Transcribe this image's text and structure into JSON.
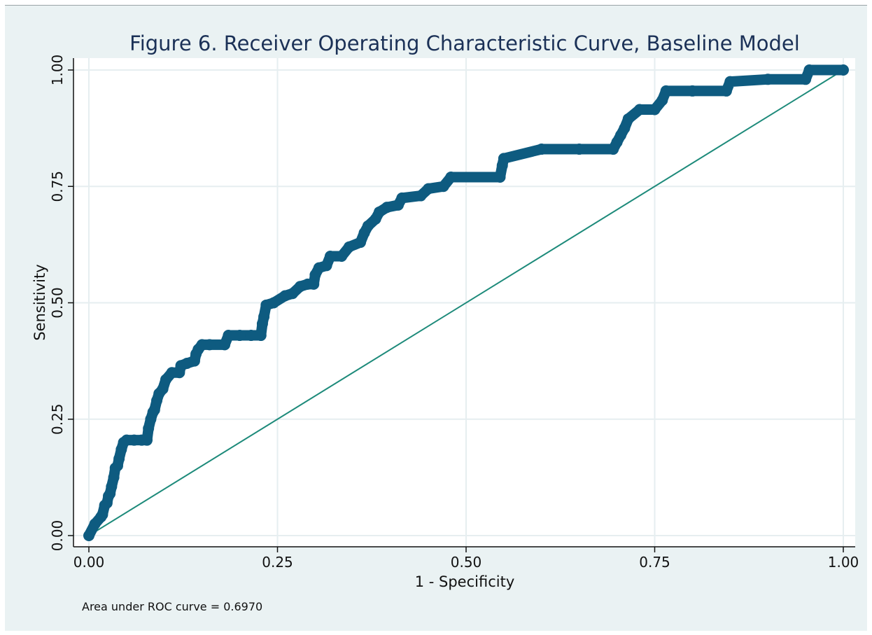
{
  "chart_data": {
    "type": "line",
    "title": "Figure 6. Receiver Operating Characteristic Curve, Baseline Model",
    "xlabel": "1 - Specificity",
    "ylabel": "Sensitivity",
    "xlim": [
      0,
      1
    ],
    "ylim": [
      0,
      1
    ],
    "x_ticks": [
      "0.00",
      "0.25",
      "0.50",
      "0.75",
      "1.00"
    ],
    "y_ticks": [
      "0.00",
      "0.25",
      "0.50",
      "0.75",
      "1.00"
    ],
    "grid": true,
    "note": "Area under ROC curve = 0.6970",
    "colors": {
      "roc": "#0e5b80",
      "reference": "#1d8a7a",
      "background": "#eaf2f3",
      "grid": "#e6eef0"
    },
    "series": [
      {
        "role": "roc",
        "x": [
          0.0,
          0.008,
          0.016,
          0.018,
          0.021,
          0.024,
          0.026,
          0.028,
          0.03,
          0.033,
          0.035,
          0.038,
          0.04,
          0.043,
          0.046,
          0.05,
          0.06,
          0.07,
          0.077,
          0.079,
          0.082,
          0.085,
          0.087,
          0.09,
          0.093,
          0.098,
          0.102,
          0.11,
          0.12,
          0.122,
          0.13,
          0.14,
          0.142,
          0.145,
          0.15,
          0.16,
          0.18,
          0.185,
          0.2,
          0.215,
          0.228,
          0.23,
          0.232,
          0.235,
          0.245,
          0.26,
          0.27,
          0.28,
          0.29,
          0.298,
          0.3,
          0.305,
          0.315,
          0.32,
          0.335,
          0.345,
          0.36,
          0.365,
          0.37,
          0.38,
          0.385,
          0.395,
          0.41,
          0.415,
          0.44,
          0.45,
          0.47,
          0.48,
          0.545,
          0.548,
          0.55,
          0.6,
          0.65,
          0.695,
          0.7,
          0.705,
          0.71,
          0.715,
          0.73,
          0.75,
          0.76,
          0.765,
          0.8,
          0.845,
          0.85,
          0.9,
          0.95,
          0.955,
          1.0
        ],
        "y": [
          0.0,
          0.025,
          0.04,
          0.045,
          0.065,
          0.07,
          0.085,
          0.09,
          0.105,
          0.125,
          0.145,
          0.15,
          0.165,
          0.185,
          0.2,
          0.205,
          0.205,
          0.205,
          0.205,
          0.23,
          0.25,
          0.265,
          0.27,
          0.29,
          0.305,
          0.315,
          0.335,
          0.35,
          0.35,
          0.365,
          0.37,
          0.375,
          0.39,
          0.4,
          0.41,
          0.41,
          0.41,
          0.43,
          0.43,
          0.43,
          0.43,
          0.455,
          0.47,
          0.495,
          0.5,
          0.515,
          0.52,
          0.535,
          0.54,
          0.54,
          0.56,
          0.575,
          0.58,
          0.6,
          0.6,
          0.62,
          0.63,
          0.65,
          0.665,
          0.68,
          0.695,
          0.705,
          0.71,
          0.725,
          0.73,
          0.745,
          0.75,
          0.77,
          0.77,
          0.795,
          0.81,
          0.83,
          0.83,
          0.83,
          0.845,
          0.86,
          0.875,
          0.895,
          0.915,
          0.915,
          0.935,
          0.955,
          0.955,
          0.955,
          0.975,
          0.98,
          0.98,
          1.0,
          1.0
        ]
      },
      {
        "role": "reference",
        "x": [
          0,
          1
        ],
        "y": [
          0,
          1
        ]
      }
    ]
  }
}
